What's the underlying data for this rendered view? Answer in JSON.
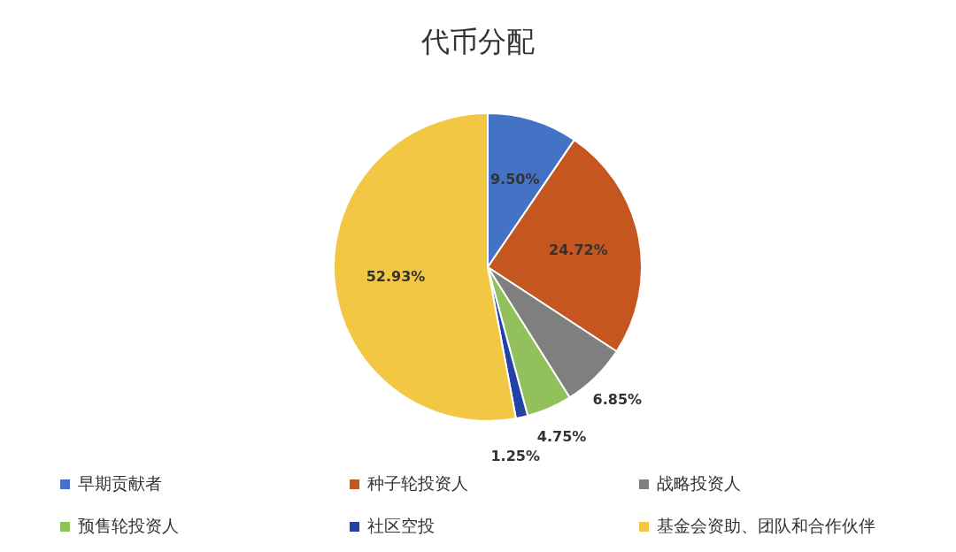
{
  "chart_data": {
    "type": "pie",
    "title": "代币分配",
    "categories": [
      "早期贡献者",
      "种子轮投资人",
      "战略投资人",
      "预售轮投资人",
      "社区空投",
      "基金会资助、团队和合作伙伴"
    ],
    "values": [
      9.5,
      24.72,
      6.85,
      4.75,
      1.25,
      52.93
    ],
    "value_labels": [
      "9.50%",
      "24.72%",
      "6.85%",
      "4.75%",
      "1.25%",
      "52.93%"
    ],
    "colors": [
      "#4472c4",
      "#c5561f",
      "#7f7f7f",
      "#92c05a",
      "#2342a8",
      "#f2c744"
    ],
    "legend": "bottom"
  }
}
